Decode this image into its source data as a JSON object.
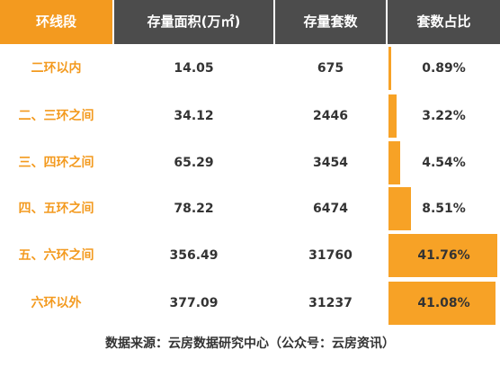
{
  "chart_data": {
    "type": "table",
    "headers": [
      "环线段",
      "存量面积(万㎡)",
      "存量套数",
      "套数占比"
    ],
    "rows": [
      {
        "ring": "二环以内",
        "area": "14.05",
        "units": "675",
        "share": 0.89,
        "share_label": "0.89%"
      },
      {
        "ring": "二、三环之间",
        "area": "34.12",
        "units": "2446",
        "share": 3.22,
        "share_label": "3.22%"
      },
      {
        "ring": "三、四环之间",
        "area": "65.29",
        "units": "3454",
        "share": 4.54,
        "share_label": "4.54%"
      },
      {
        "ring": "四、五环之间",
        "area": "78.22",
        "units": "6474",
        "share": 8.51,
        "share_label": "8.51%"
      },
      {
        "ring": "五、六环之间",
        "area": "356.49",
        "units": "31760",
        "share": 41.76,
        "share_label": "41.76%"
      },
      {
        "ring": "六环以外",
        "area": "377.09",
        "units": "31237",
        "share": 41.08,
        "share_label": "41.08%"
      }
    ]
  },
  "footer": "数据来源：云房数据研究中心（公众号：云房资讯）",
  "colors": {
    "accent": "#f39a1f",
    "bar": "#f7a226",
    "header_bg": "#4c4c4c"
  }
}
